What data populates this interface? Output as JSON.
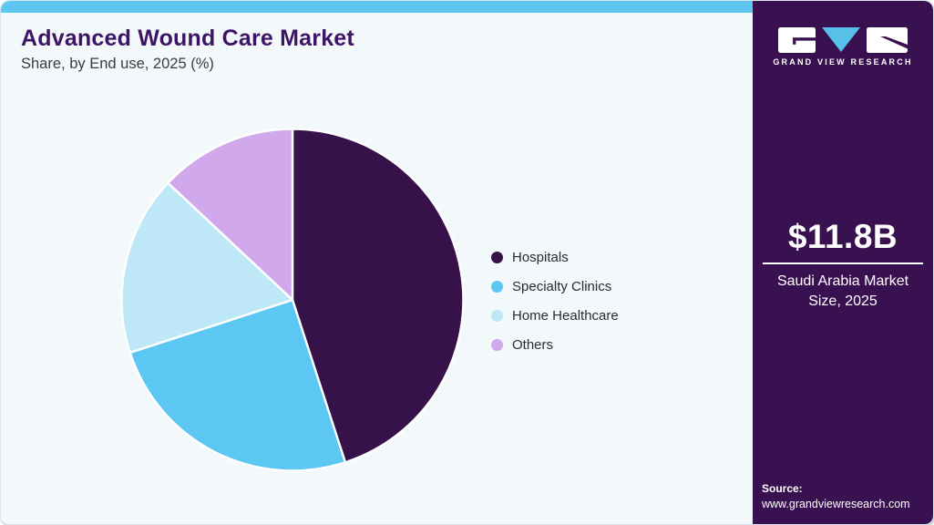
{
  "header": {
    "title": "Advanced Wound Care Market",
    "subtitle": "Share, by End use, 2025 (%)"
  },
  "chart_data": {
    "type": "pie",
    "title": "Advanced Wound Care Market Share, by End use, 2025 (%)",
    "categories": [
      "Hospitals",
      "Specialty Clinics",
      "Home Healthcare",
      "Others"
    ],
    "values": [
      45,
      25,
      17,
      13
    ],
    "unit": "%",
    "colors": [
      "#36114A",
      "#5BC7F2",
      "#BEE8F8",
      "#D1A8EC"
    ],
    "start_angle_deg": 0,
    "direction": "clockwise",
    "legend_position": "right",
    "slice_border_color": "#FFFFFF"
  },
  "side_panel": {
    "bg_color": "#3A1150",
    "logo": {
      "text": "GRAND VIEW RESEARCH",
      "mark_blue": "#56C0E8",
      "mark_white": "#FFFFFF"
    },
    "market_size": {
      "value": "$11.8B",
      "label": "Saudi Arabia Market Size, 2025"
    },
    "source": {
      "label": "Source:",
      "url": "www.grandviewresearch.com"
    }
  },
  "theme": {
    "topbar_color": "#5EC7F0",
    "card_bg": "#F3F8FB",
    "title_color": "#3E1566"
  }
}
